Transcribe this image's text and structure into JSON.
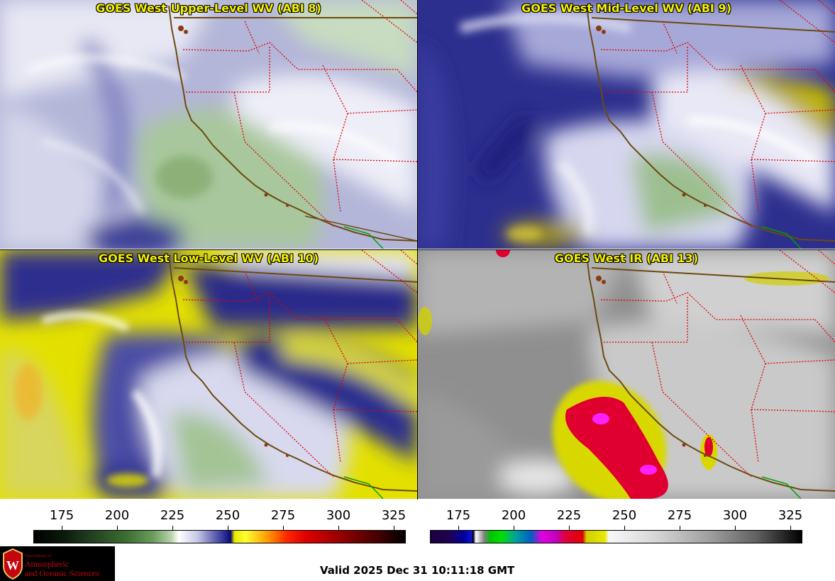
{
  "panels": {
    "upper_left": {
      "title": "GOES West Upper-Level WV (ABI 8)"
    },
    "upper_right": {
      "title": "GOES West Mid-Level WV (ABI 9)"
    },
    "lower_left": {
      "title": "GOES West Low-Level WV (ABI 10)"
    },
    "lower_right": {
      "title": "GOES West IR (ABI 13)"
    }
  },
  "colorbars": {
    "left": {
      "ticks": [
        "175",
        "200",
        "225",
        "250",
        "275",
        "300",
        "325"
      ]
    },
    "right": {
      "ticks": [
        "175",
        "200",
        "225",
        "250",
        "275",
        "300",
        "325"
      ]
    }
  },
  "logo": {
    "dept": "Department of",
    "line1": "Atmospheric",
    "line2": "and Oceanic Sciences",
    "crest_letter": "W"
  },
  "footer": {
    "valid_time": "Valid 2025 Dec 31 10:11:18 GMT"
  },
  "colors": {
    "title_yellow": "#f4f000",
    "coast": "#6b4a10",
    "state_border": "#e00000",
    "mexico_border": "#00a000",
    "logo_red": "#c5050c"
  }
}
